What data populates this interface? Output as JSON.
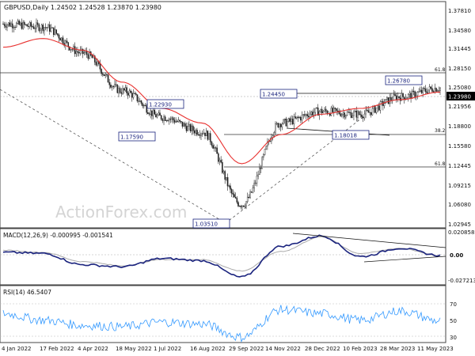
{
  "header": {
    "symbol_line": "GBPUSD,Daily  1.24502 1.24528 1.23870 1.23980"
  },
  "watermark": "ActionForex.com",
  "price_axis": {
    "ticks": [
      "1.37810",
      "1.34580",
      "1.31445",
      "1.28150",
      "1.25080",
      "1.21956",
      "1.18800",
      "1.15580",
      "1.12445",
      "1.09215",
      "1.06080",
      "1.02945"
    ],
    "current_price": "1.23980"
  },
  "time_axis": {
    "labels": [
      "4 Jan 2022",
      "17 Feb 2022",
      "4 Apr 2022",
      "18 May 2022",
      "1 Jul 2022",
      "16 Aug 2022",
      "29 Sep 2022",
      "14 Nov 2022",
      "28 Dec 2022",
      "10 Feb 2023",
      "28 Mar 2023",
      "11 May 2023"
    ]
  },
  "annotations": {
    "price_labels": [
      "1.22930",
      "1.17590",
      "1.03510",
      "1.24450",
      "1.26780",
      "1.18018"
    ],
    "fib_labels": [
      "61.8",
      "38.2",
      "61.8"
    ]
  },
  "macd": {
    "header": "MACD(12,26,9) -0.000995 -0.001541",
    "ticks": [
      "0.020858",
      "0.00",
      "-0.027213"
    ]
  },
  "rsi": {
    "header": "RSI(14) 46.5407",
    "ticks": [
      "70",
      "50",
      "30"
    ]
  },
  "colors": {
    "candle": "#222222",
    "ma": "#e8312f",
    "macd_line": "#1a237e",
    "signal_line": "#aaaaaa",
    "rsi_line": "#3399ff",
    "label_box": "#1a237e"
  },
  "chart_data": [
    {
      "type": "line",
      "series_kind": "candlestick",
      "x": [
        "4 Jan 2022",
        "17 Feb 2022",
        "4 Apr 2022",
        "18 May 2022",
        "1 Jul 2022",
        "16 Aug 2022",
        "29 Sep 2022",
        "14 Nov 2022",
        "28 Dec 2022",
        "10 Feb 2023",
        "28 Mar 2023",
        "11 May 2023"
      ],
      "series": [
        {
          "values": [
            1.36,
            1.355,
            1.31,
            1.245,
            1.2,
            1.175,
            1.05,
            1.19,
            1.21,
            1.205,
            1.235,
            1.25
          ]
        },
        {
          "values": [
            1.32,
            1.335,
            1.315,
            1.26,
            1.215,
            1.19,
            1.12,
            1.17,
            1.205,
            1.215,
            1.23,
            1.243
          ]
        }
      ],
      "ylim": [
        1.0125,
        1.3875
      ]
    },
    {
      "type": "line",
      "x": [
        "4 Jan 2022",
        "17 Feb 2022",
        "4 Apr 2022",
        "18 May 2022",
        "1 Jul 2022",
        "16 Aug 2022",
        "29 Sep 2022",
        "14 Nov 2022",
        "28 Dec 2022",
        "10 Feb 2023",
        "28 Mar 2023",
        "11 May 2023"
      ],
      "series": [
        {
          "values": [
            0.002,
            0.001,
            -0.01,
            -0.012,
            -0.004,
            -0.006,
            -0.022,
            0.008,
            0.018,
            -0.002,
            0.006,
            -0.001
          ]
        },
        {
          "values": [
            0.004,
            0.002,
            -0.007,
            -0.011,
            -0.005,
            -0.005,
            -0.016,
            0.003,
            0.017,
            0.001,
            0.006,
            -0.0015
          ]
        }
      ],
      "ylim": [
        -0.028,
        0.022
      ]
    },
    {
      "type": "line",
      "x": [
        "4 Jan 2022",
        "17 Feb 2022",
        "4 Apr 2022",
        "18 May 2022",
        "1 Jul 2022",
        "16 Aug 2022",
        "29 Sep 2022",
        "14 Nov 2022",
        "28 Dec 2022",
        "10 Feb 2023",
        "28 Mar 2023",
        "11 May 2023"
      ],
      "series": [
        {
          "values": [
            58,
            48,
            40,
            38,
            45,
            42,
            22,
            64,
            58,
            48,
            62,
            46.5
          ]
        }
      ],
      "ylim": [
        15,
        85
      ]
    }
  ]
}
